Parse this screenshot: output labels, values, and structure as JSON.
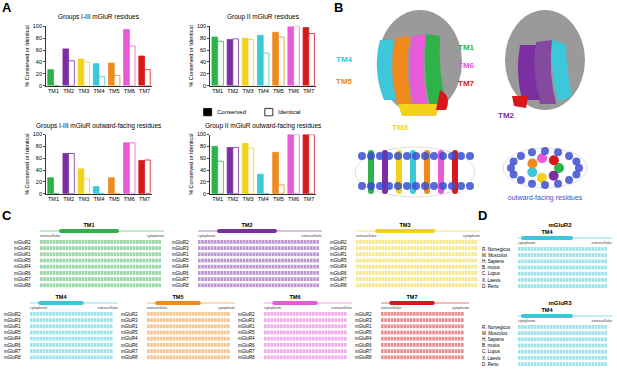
{
  "chart_data": [
    {
      "type": "bar",
      "title": "Groups I-III mGluR residues",
      "ylabel": "% Conserved or Identical",
      "categories": [
        "TM1",
        "TM2",
        "TM3",
        "TM4",
        "TM5",
        "TM6",
        "TM7"
      ],
      "colors": [
        "#2db34a",
        "#7b2fa0",
        "#f2d21b",
        "#3cc8d8",
        "#f08a1c",
        "#e85ad8",
        "#d7191c"
      ],
      "series": [
        {
          "name": "Conserved",
          "color": "#000000",
          "marker": "filled",
          "values": [
            27,
            62,
            45,
            37,
            38,
            95,
            50
          ]
        },
        {
          "name": "Identical",
          "color": "#000000",
          "marker": "open",
          "values": [
            0,
            42,
            40,
            15,
            17,
            67,
            27
          ]
        }
      ],
      "ylim": [
        0,
        100
      ],
      "yticks": [
        0,
        20,
        40,
        60,
        80,
        100
      ],
      "grid": false
    },
    {
      "type": "bar",
      "title": "Group II mGluR residues",
      "ylabel": "% Conserved or Identical",
      "categories": [
        "TM1",
        "TM2",
        "TM3",
        "TM4",
        "TM5",
        "TM6",
        "TM7"
      ],
      "colors": [
        "#2db34a",
        "#7b2fa0",
        "#f2d21b",
        "#3cc8d8",
        "#f08a1c",
        "#e85ad8",
        "#d7191c"
      ],
      "series": [
        {
          "name": "Conserved",
          "color": "#000000",
          "marker": "filled",
          "values": [
            82,
            78,
            80,
            85,
            90,
            100,
            98
          ]
        },
        {
          "name": "Identical",
          "color": "#000000",
          "marker": "open",
          "values": [
            75,
            79,
            78,
            55,
            82,
            100,
            88
          ]
        }
      ],
      "ylim": [
        0,
        100
      ],
      "yticks": [
        0,
        20,
        40,
        60,
        80,
        100
      ],
      "grid": false,
      "legend": "right"
    },
    {
      "type": "bar",
      "title": "Groups I-III mGluR outward-facing residues",
      "ylabel": "% Conserved or Identical",
      "categories": [
        "TM1",
        "TM2",
        "TM3",
        "TM4",
        "TM5",
        "TM6",
        "TM7"
      ],
      "colors": [
        "#2db34a",
        "#7b2fa0",
        "#f2d21b",
        "#3cc8d8",
        "#f08a1c",
        "#e85ad8",
        "#d7191c"
      ],
      "series": [
        {
          "name": "Conserved",
          "color": "#000000",
          "marker": "filled",
          "values": [
            27,
            68,
            42,
            12,
            27,
            86,
            56
          ]
        },
        {
          "name": "Identical",
          "color": "#000000",
          "marker": "open",
          "values": [
            0,
            68,
            25,
            0,
            0,
            86,
            57
          ]
        }
      ],
      "ylim": [
        0,
        100
      ],
      "yticks": [
        0,
        20,
        40,
        60,
        80,
        100
      ],
      "grid": false
    },
    {
      "type": "bar",
      "title": "Group II mGluR outward-facing residues",
      "ylabel": "% Conserved or Identical",
      "categories": [
        "TM1",
        "TM2",
        "TM3",
        "TM4",
        "TM5",
        "TM6",
        "TM7"
      ],
      "colors": [
        "#2db34a",
        "#7b2fa0",
        "#f2d21b",
        "#3cc8d8",
        "#f08a1c",
        "#e85ad8",
        "#d7191c"
      ],
      "series": [
        {
          "name": "Conserved",
          "color": "#000000",
          "marker": "filled",
          "values": [
            80,
            78,
            85,
            33,
            70,
            100,
            100
          ]
        },
        {
          "name": "Identical",
          "color": "#000000",
          "marker": "open",
          "values": [
            55,
            78,
            77,
            0,
            15,
            100,
            100
          ]
        }
      ],
      "ylim": [
        0,
        100
      ],
      "yticks": [
        0,
        20,
        40,
        60,
        80,
        100
      ],
      "grid": false
    }
  ],
  "panels": {
    "A": {
      "label": "A"
    },
    "B": {
      "label": "B",
      "tm_labels": [
        {
          "text": "TM4",
          "color": "#3cc8d8"
        },
        {
          "text": "TM5",
          "color": "#f08a1c"
        },
        {
          "text": "TM3",
          "color": "#f2d21b"
        },
        {
          "text": "TM1",
          "color": "#2db34a"
        },
        {
          "text": "TM6",
          "color": "#e85ad8"
        },
        {
          "text": "TM7",
          "color": "#d7191c"
        },
        {
          "text": "TM2",
          "color": "#7b2fa0"
        }
      ],
      "outward_label": "outward-facing residues"
    },
    "C": {
      "label": "C",
      "receptors": [
        "mGluR2",
        "mGluR3",
        "mGluR1",
        "mGluR5",
        "mGluR4",
        "mGluR6",
        "mGluR7",
        "mGluR8"
      ],
      "blocks": [
        {
          "title": "TM1",
          "color": "#2db34a",
          "left": "extracellular",
          "right": "cytoplasm"
        },
        {
          "title": "TM2",
          "color": "#7b2fa0",
          "left": "cytoplasm",
          "right": "extracellular"
        },
        {
          "title": "TM3",
          "color": "#f2d21b",
          "left": "extracellular",
          "right": "cytoplasm"
        },
        {
          "title": "TM4",
          "color": "#3cc8d8",
          "left": "cytoplasm",
          "right": "extracellular"
        },
        {
          "title": "TM5",
          "color": "#f08a1c",
          "left": "extracellular",
          "right": "cytoplasm"
        },
        {
          "title": "TM6",
          "color": "#e85ad8",
          "left": "cytoplasm",
          "right": "extracellular"
        },
        {
          "title": "TM7",
          "color": "#d7191c",
          "left": "extracellular",
          "right": "cytoplasm"
        }
      ]
    },
    "D": {
      "label": "D",
      "species": [
        "R. Norvegicus",
        "M. Musculus",
        "H. Sapiens",
        "B. mutus",
        "C. Lupus",
        "X. Laevis",
        "D. Rerio"
      ],
      "blocks": [
        {
          "receptor": "mGluR2",
          "title": "TM4",
          "color": "#3cc8d8",
          "left": "cytoplasm",
          "right": "extracellular"
        },
        {
          "receptor": "mGluR3",
          "title": "TM4",
          "color": "#3cc8d8",
          "left": "cytoplasm",
          "right": "extracellular"
        }
      ]
    }
  }
}
